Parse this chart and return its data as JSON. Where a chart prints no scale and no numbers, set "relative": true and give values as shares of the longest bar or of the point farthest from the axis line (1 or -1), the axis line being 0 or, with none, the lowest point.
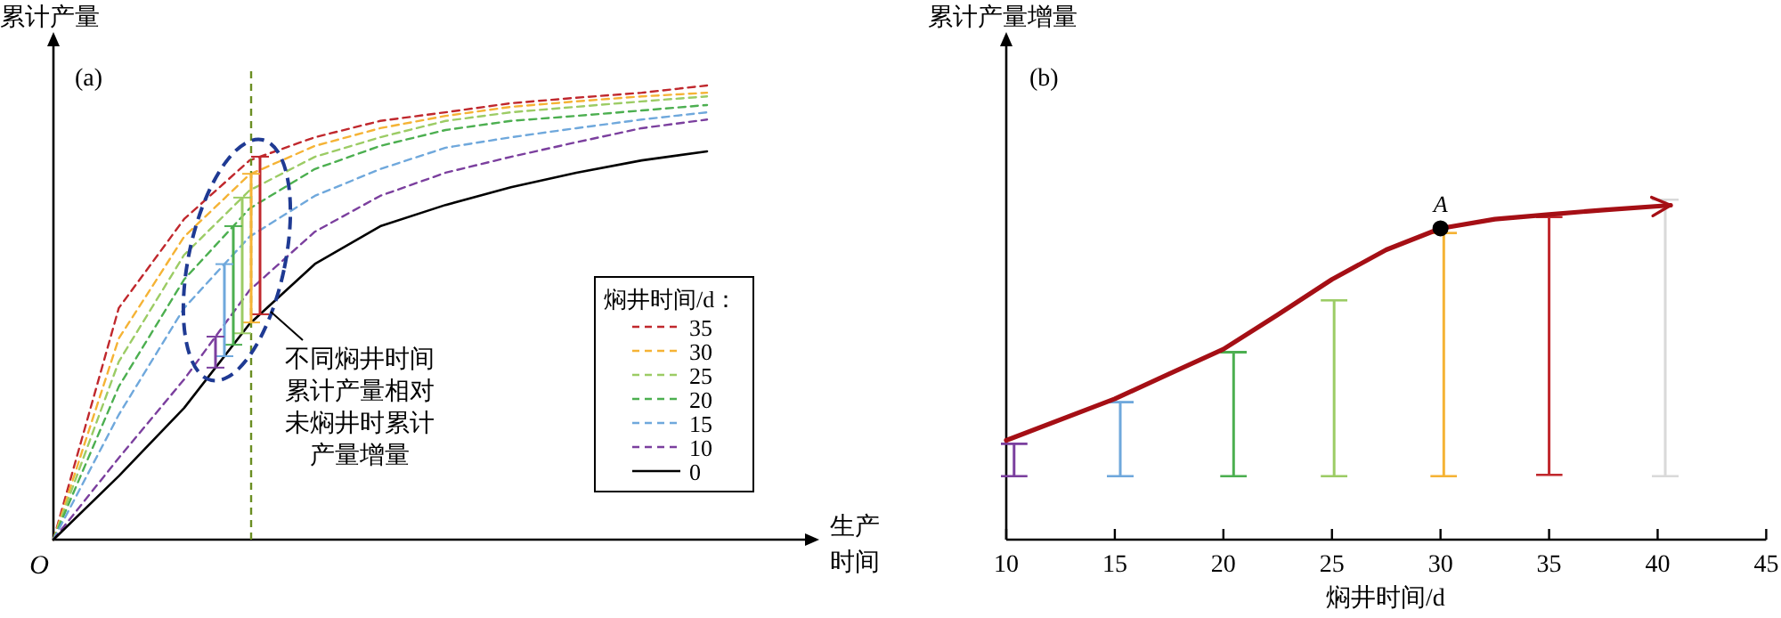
{
  "chart_data": [
    {
      "type": "line",
      "relative": true,
      "ylabel": "累计产量",
      "xlabel": "生产时间",
      "legend_title": "焖井时间/d：",
      "legend": "bottom right",
      "tick_labels": false,
      "annotations": [
        "(a)",
        "O",
        "不同焖井时间累计产量相对未焖井时累计产量增量"
      ],
      "categories": [
        null,
        null,
        null,
        null,
        null,
        null,
        null,
        null,
        null,
        null,
        null
      ],
      "series": [
        {
          "name": "35",
          "color": "#c0282d",
          "line_style": "dashed",
          "values": [
            0,
            0.51,
            0.706,
            0.835,
            0.886,
            0.922,
            0.941,
            0.961,
            0.973,
            0.984,
            1
          ]
        },
        {
          "name": "30",
          "color": "#f5b335",
          "line_style": "dashed",
          "values": [
            0,
            0.443,
            0.667,
            0.804,
            0.867,
            0.906,
            0.933,
            0.953,
            0.965,
            0.976,
            0.984
          ]
        },
        {
          "name": "25",
          "color": "#9ccc65",
          "line_style": "dashed",
          "values": [
            0,
            0.392,
            0.627,
            0.769,
            0.843,
            0.886,
            0.922,
            0.941,
            0.953,
            0.965,
            0.976
          ]
        },
        {
          "name": "20",
          "color": "#4caf50",
          "line_style": "dashed",
          "values": [
            0,
            0.337,
            0.573,
            0.729,
            0.816,
            0.867,
            0.902,
            0.922,
            0.933,
            0.945,
            0.957
          ]
        },
        {
          "name": "15",
          "color": "#6fa8dc",
          "line_style": "dashed",
          "values": [
            0,
            0.275,
            0.51,
            0.667,
            0.757,
            0.816,
            0.863,
            0.886,
            0.906,
            0.925,
            0.941
          ]
        },
        {
          "name": "10",
          "color": "#7b3f9e",
          "line_style": "dashed",
          "values": [
            0,
            0.18,
            0.353,
            0.549,
            0.678,
            0.757,
            0.808,
            0.843,
            0.875,
            0.906,
            0.925
          ]
        },
        {
          "name": "0",
          "color": "#000000",
          "line_style": "solid",
          "values": [
            0,
            0.14,
            0.29,
            0.475,
            0.607,
            0.69,
            0.737,
            0.776,
            0.808,
            0.835,
            0.855
          ]
        }
      ]
    },
    {
      "type": "line",
      "relative": true,
      "ylabel": "累计产量增量",
      "xlabel": "焖井时间/d",
      "tick_labels": "x",
      "annotations": [
        "(b)",
        {
          "text": "A",
          "x": 30,
          "y": 0.915
        }
      ],
      "xlim": [
        10,
        45
      ],
      "xticks": [
        10,
        15,
        20,
        25,
        30,
        35,
        40,
        45
      ],
      "series": [
        {
          "color": "#7b3f9e",
          "x": [
            10.36,
            10.36
          ],
          "values": [
            0.186,
            0.282
          ]
        },
        {
          "color": "#6fa8dc",
          "x": [
            15.25,
            15.25
          ],
          "values": [
            0.186,
            0.404
          ]
        },
        {
          "color": "#4caf50",
          "x": [
            20.47,
            20.47
          ],
          "values": [
            0.186,
            0.551
          ]
        },
        {
          "color": "#9ccc65",
          "x": [
            25.1,
            25.1
          ],
          "values": [
            0.186,
            0.704
          ]
        },
        {
          "color": "#f5b335",
          "x": [
            30.15,
            30.15
          ],
          "values": [
            0.186,
            0.901
          ]
        },
        {
          "color": "#c0282d",
          "x": [
            35.0,
            35.0
          ],
          "values": [
            0.191,
            0.948
          ]
        },
        {
          "color": "#d9d9d9",
          "x": [
            40.35,
            40.35
          ],
          "values": [
            0.186,
            1.0
          ]
        },
        {
          "color": "#a50f15",
          "line_style": "solid",
          "x": [
            10,
            15,
            17.5,
            20,
            22.5,
            25,
            27.5,
            30,
            32.5,
            35,
            37.5,
            40.6
          ],
          "values": [
            0.292,
            0.414,
            0.487,
            0.56,
            0.661,
            0.765,
            0.852,
            0.915,
            0.942,
            0.956,
            0.969,
            0.983
          ]
        },
        {
          "type": "scatter",
          "color": "#000000",
          "marker": "circle",
          "x": [
            30
          ],
          "values": [
            0.915
          ]
        }
      ]
    }
  ]
}
